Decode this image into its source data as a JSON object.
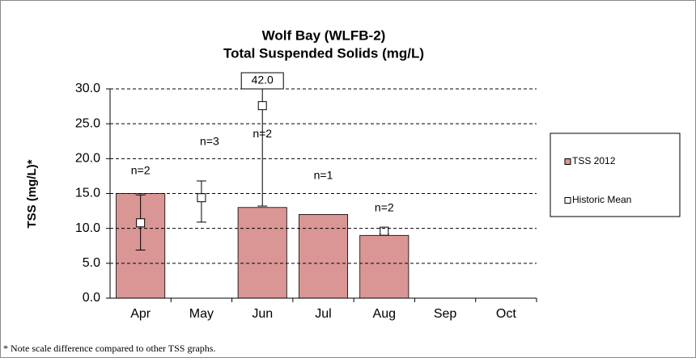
{
  "chart_data": {
    "type": "bar",
    "title": [
      "Wolf Bay (WLFB-2)",
      "Total Suspended Solids  (mg/L)"
    ],
    "y_label": "TSS (mg/L)*",
    "categories": [
      "Apr",
      "May",
      "Jun",
      "Jul",
      "Aug",
      "Sep",
      "Oct"
    ],
    "series": [
      {
        "name": "TSS 2012",
        "type": "bar",
        "color": "#d99694",
        "values": [
          15.0,
          null,
          13.0,
          12.0,
          9.0,
          null,
          null
        ]
      },
      {
        "name": "Historic Mean",
        "type": "marker",
        "color": "#ffffff",
        "values": [
          10.8,
          14.4,
          27.6,
          null,
          9.6,
          null,
          null
        ],
        "error_low": [
          6.9,
          10.9,
          13.2,
          null,
          9.2,
          null,
          null
        ],
        "error_high": [
          14.8,
          16.8,
          42.0,
          null,
          10.0,
          null,
          null
        ]
      }
    ],
    "annotations": [
      {
        "text": "n=2",
        "category": "Apr"
      },
      {
        "text": "n=3",
        "category": "May"
      },
      {
        "text": "n=2",
        "category": "Jun"
      },
      {
        "text": "n=1",
        "category": "Jul"
      },
      {
        "text": "n=2",
        "category": "Aug"
      },
      {
        "text": "42.0",
        "category": "Jun"
      }
    ],
    "ylim": [
      0,
      30
    ],
    "yticks": [
      {
        "value": 0,
        "label": "0.0"
      },
      {
        "value": 5,
        "label": "5.0"
      },
      {
        "value": 10,
        "label": "10.0"
      },
      {
        "value": 15,
        "label": "15.0"
      },
      {
        "value": 20,
        "label": "20.0"
      },
      {
        "value": 25,
        "label": "25.0"
      },
      {
        "value": 30,
        "label": "30.0"
      }
    ],
    "grid": true,
    "legend": "right",
    "footnote": "* Note scale difference compared to other TSS graphs."
  }
}
